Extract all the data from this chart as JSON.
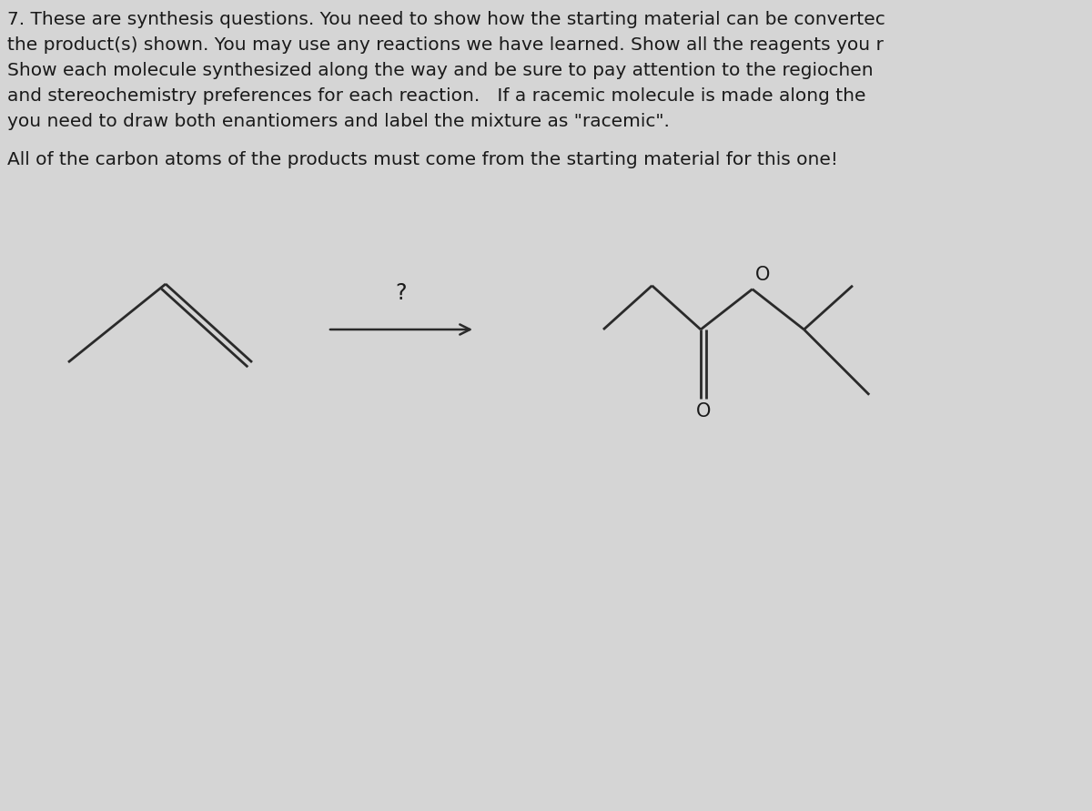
{
  "bg_color": "#d5d5d5",
  "text_color": "#1a1a1a",
  "line_color": "#2a2a2a",
  "header_lines": [
    "7. These are synthesis questions. You need to show how the starting material can be convertec",
    "the product(s) shown. You may use any reactions we have learned. Show all the reagents you r",
    "Show each molecule synthesized along the way and be sure to pay attention to the regiochen",
    "and stereochemistry preferences for each reaction.   If a racemic molecule is made along the",
    "you need to draw both enantiomers and label the mixture as \"racemic\"."
  ],
  "bold_text": "All of the carbon atoms of the products must come from the starting material for this one!",
  "header_fontsize": 14.5,
  "bold_fontsize": 14.5,
  "figsize": [
    12.0,
    8.91
  ],
  "dpi": 100
}
